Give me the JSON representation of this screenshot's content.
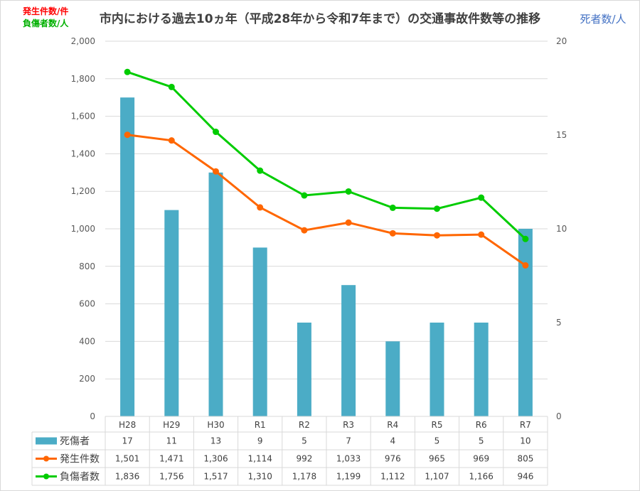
{
  "chart_data": {
    "type": "bar+line",
    "title": "市内における過去10ヵ年（平成28年から令和7年まで）の交通事故件数等の推移",
    "left_axis_labels": [
      {
        "text": "発生件数/件",
        "color": "#ff0000"
      },
      {
        "text": "負傷者数/人",
        "color": "#00b000"
      }
    ],
    "right_axis_label": {
      "text": "死者数/人",
      "color": "#4472c4"
    },
    "categories": [
      "H28",
      "H29",
      "H30",
      "R1",
      "R2",
      "R3",
      "R4",
      "R5",
      "R6",
      "R7"
    ],
    "ylim_left": [
      0,
      2000
    ],
    "yticks_left": [
      0,
      200,
      400,
      600,
      800,
      1000,
      1200,
      1400,
      1600,
      1800,
      2000
    ],
    "ylim_right": [
      0,
      20
    ],
    "yticks_right": [
      0,
      5,
      10,
      15,
      20
    ],
    "grid": true,
    "legend": "data-table",
    "series": [
      {
        "name": "死傷者",
        "type": "bar",
        "axis": "right",
        "color": "#4bacc6",
        "values": [
          17,
          11,
          13,
          9,
          5,
          7,
          4,
          5,
          5,
          10
        ]
      },
      {
        "name": "発生件数",
        "type": "line",
        "axis": "left",
        "color": "#ff6600",
        "values": [
          1501,
          1471,
          1306,
          1114,
          992,
          1033,
          976,
          965,
          969,
          805
        ]
      },
      {
        "name": "負傷者数",
        "type": "line",
        "axis": "left",
        "color": "#00cc00",
        "values": [
          1836,
          1756,
          1517,
          1310,
          1178,
          1199,
          1112,
          1107,
          1166,
          946
        ]
      }
    ]
  }
}
